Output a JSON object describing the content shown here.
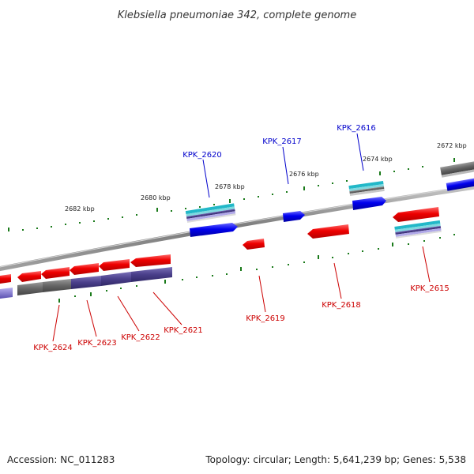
{
  "title": "Klebsiella pneumoniae 342, complete genome",
  "footer": {
    "accession": "Accession: NC_011283",
    "summary": "Topology: circular; Length: 5,641,239 bp; Genes: 5,538"
  },
  "colors": {
    "forward_gene": "#0000ee",
    "reverse_gene": "#ee0000",
    "backbone": "#888888",
    "tick": "#1a7a1a",
    "forward_label": "#0000cc",
    "reverse_label": "#cc0000",
    "rna_cyan": "#22b8c8",
    "grey_feature": "#666666",
    "purple_feature": "#4a3f8a"
  },
  "tick_labels": [
    "2682 kbp",
    "2680 kbp",
    "2678 kbp",
    "2676 kbp",
    "2674 kbp",
    "2672 kbp"
  ],
  "gene_labels": {
    "forward": [
      "KPK_2620",
      "KPK_2617",
      "KPK_2616"
    ],
    "reverse": [
      "KPK_2624",
      "KPK_2623",
      "KPK_2622",
      "KPK_2621",
      "KPK_2619",
      "KPK_2618",
      "KPK_2615"
    ]
  }
}
